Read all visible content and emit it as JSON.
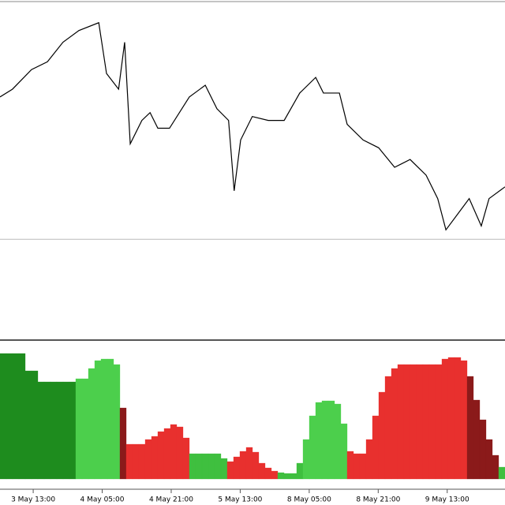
{
  "chart_data": [
    {
      "type": "line",
      "color": "#000000",
      "level": 128,
      "x": [
        -7.7,
        -4.8,
        -0.4,
        3.3,
        6.9,
        10.6,
        15.2,
        17,
        19.8,
        21.2,
        22.5,
        25.2,
        27.1,
        28.9,
        31.6,
        36.2,
        39.9,
        42.6,
        45.3,
        46.6,
        48.1,
        50.8,
        54.5,
        58.2,
        61.8,
        65.5,
        67.3,
        71,
        72.8,
        76.5,
        80.1,
        83.8,
        87.4,
        91.1,
        93.8,
        95.7,
        98.4,
        101.1,
        103.9,
        105.7,
        109.4
      ],
      "values": [
        310,
        320,
        345,
        355,
        380,
        395,
        405,
        340,
        320,
        380,
        250,
        280,
        290,
        270,
        270,
        310,
        325,
        295,
        280,
        190,
        255,
        285,
        280,
        280,
        315,
        335,
        315,
        315,
        275,
        255,
        245,
        220,
        230,
        210,
        180,
        140,
        160,
        180,
        145,
        180,
        195
      ],
      "xlim": [
        -7.7,
        109.4
      ],
      "ylim": [
        0,
        430
      ]
    },
    {
      "type": "bar",
      "values": [
        159,
        159,
        159,
        159,
        137,
        137,
        123,
        123,
        123,
        123,
        123,
        123,
        127,
        127,
        140,
        150,
        152,
        152,
        145,
        90,
        44,
        44,
        44,
        50,
        54,
        60,
        64,
        69,
        66,
        52,
        32,
        32,
        32,
        32,
        32,
        26,
        22,
        28,
        35,
        40,
        34,
        20,
        14,
        10,
        8,
        7,
        7,
        20,
        50,
        80,
        97,
        99,
        99,
        95,
        70,
        35,
        32,
        32,
        50,
        80,
        110,
        130,
        140,
        145,
        145,
        145,
        145,
        145,
        145,
        145,
        152,
        154,
        154,
        150,
        130,
        100,
        75,
        50,
        30,
        15
      ],
      "colors": [
        "#1e8c1e",
        "#1e8c1e",
        "#1e8c1e",
        "#1e8c1e",
        "#1e8c1e",
        "#1e8c1e",
        "#1e8c1e",
        "#1e8c1e",
        "#1e8c1e",
        "#1e8c1e",
        "#1e8c1e",
        "#1e8c1e",
        "#4ccf4c",
        "#4ccf4c",
        "#4ccf4c",
        "#4ccf4c",
        "#4ccf4c",
        "#4ccf4c",
        "#4ccf4c",
        "#8b1a1a",
        "#e8302e",
        "#e8302e",
        "#e8302e",
        "#e8302e",
        "#e8302e",
        "#e8302e",
        "#e8302e",
        "#e8302e",
        "#e8302e",
        "#e8302e",
        "#3fbf3f",
        "#3fbf3f",
        "#3fbf3f",
        "#3fbf3f",
        "#3fbf3f",
        "#3fbf3f",
        "#e8302e",
        "#e8302e",
        "#e8302e",
        "#e8302e",
        "#e8302e",
        "#e8302e",
        "#e8302e",
        "#e8302e",
        "#3fbf3f",
        "#3fbf3f",
        "#3fbf3f",
        "#3fbf3f",
        "#4ccf4c",
        "#4ccf4c",
        "#4ccf4c",
        "#4ccf4c",
        "#4ccf4c",
        "#4ccf4c",
        "#4ccf4c",
        "#e8302e",
        "#e8302e",
        "#e8302e",
        "#e8302e",
        "#e8302e",
        "#e8302e",
        "#e8302e",
        "#e8302e",
        "#e8302e",
        "#e8302e",
        "#e8302e",
        "#e8302e",
        "#e8302e",
        "#e8302e",
        "#e8302e",
        "#e8302e",
        "#e8302e",
        "#e8302e",
        "#e8302e",
        "#8b1a1a",
        "#8b1a1a",
        "#8b1a1a",
        "#8b1a1a",
        "#8b1a1a",
        "#3fbf3f"
      ],
      "ylim": [
        0,
        170
      ],
      "xlim": [
        -7.7,
        109.4
      ],
      "xticks": [
        {
          "value": 0,
          "label": "3 May 13:00"
        },
        {
          "value": 16,
          "label": "4 May 05:00"
        },
        {
          "value": 32,
          "label": "4 May 21:00"
        },
        {
          "value": 48,
          "label": "5 May 13:00"
        },
        {
          "value": 64,
          "label": "8 May 05:00"
        },
        {
          "value": 80,
          "label": "8 May 21:00"
        },
        {
          "value": 96,
          "label": "9 May 13:00"
        }
      ]
    }
  ]
}
